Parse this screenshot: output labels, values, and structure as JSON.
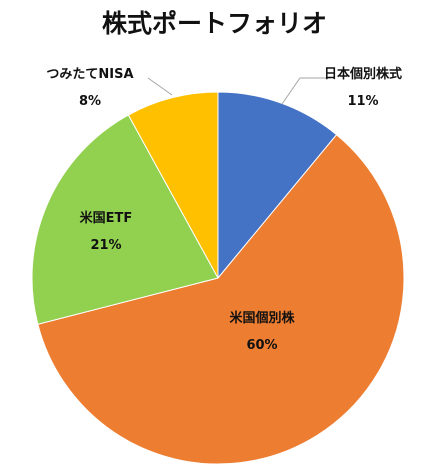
{
  "chart_data": {
    "type": "pie",
    "title": "株式ポートフォリオ",
    "slices": [
      {
        "name": "日本個別株式",
        "value": 11,
        "label": "11%",
        "color": "#4472C4"
      },
      {
        "name": "米国個別株",
        "value": 60,
        "label": "60%",
        "color": "#ED7D31"
      },
      {
        "name": "米国ETF",
        "value": 21,
        "label": "21%",
        "color": "#92D050"
      },
      {
        "name": "つみたてNISA",
        "value": 8,
        "label": "8%",
        "color": "#FFC000"
      }
    ],
    "legend": "none"
  }
}
